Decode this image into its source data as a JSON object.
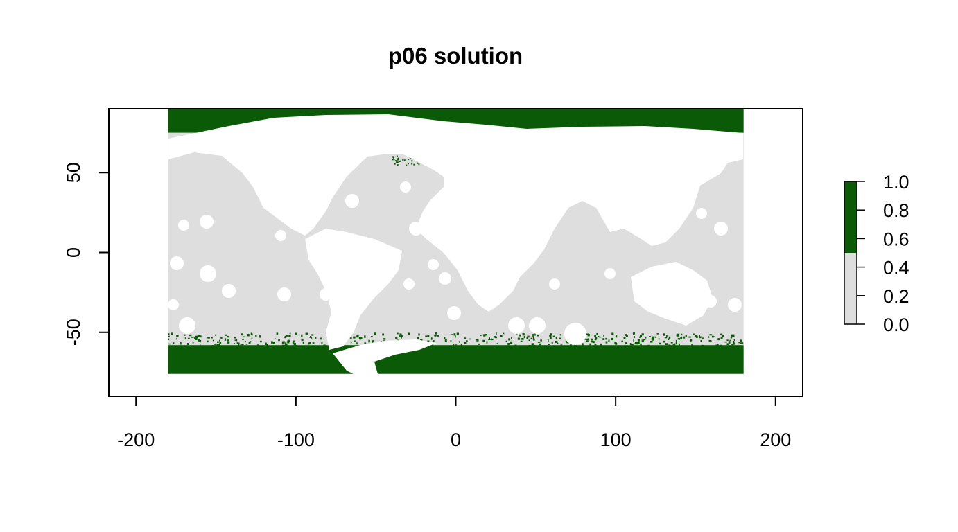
{
  "chart_data": {
    "type": "heatmap",
    "title": "p06 solution",
    "xlabel": "",
    "ylabel": "",
    "xlim": [
      -217,
      217
    ],
    "ylim": [
      -90,
      90
    ],
    "x_ticks": [
      -200,
      -100,
      0,
      100,
      200
    ],
    "y_ticks": [
      -50,
      0,
      50
    ],
    "x_tick_labels": [
      "-200",
      "-100",
      "0",
      "100",
      "200"
    ],
    "y_tick_labels": [
      "-50",
      "0",
      "50"
    ],
    "raster_extent": {
      "xmin": -180,
      "xmax": 180,
      "ymin": -76,
      "ymax": 90
    },
    "value_classes": [
      {
        "range": [
          0,
          0.5
        ],
        "color": "#dedede",
        "meaning": "not selected"
      },
      {
        "range": [
          0.5,
          1.0
        ],
        "color": "#0b5a07",
        "meaning": "selected"
      }
    ],
    "selected_bands_lat": [
      [
        75,
        90
      ],
      [
        -76,
        -58
      ]
    ],
    "legend": {
      "position": "right",
      "ticks": [
        0.0,
        0.2,
        0.4,
        0.6,
        0.8,
        1.0
      ],
      "tick_labels": [
        "0.0",
        "0.2",
        "0.4",
        "0.6",
        "0.8",
        "1.0"
      ],
      "colors": [
        "#dedede",
        "#0b5a07"
      ],
      "break": 0.5
    },
    "grid": false
  }
}
